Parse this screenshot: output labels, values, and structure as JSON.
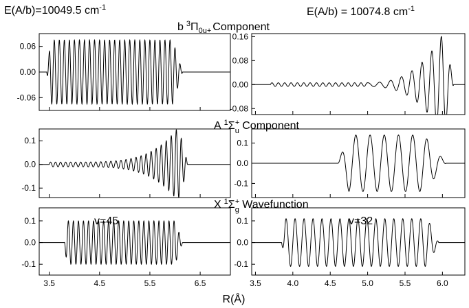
{
  "header": {
    "left_energy": "E(A/b)=10049.5 cm",
    "right_energy": "E(A/b) = 10074.8 cm",
    "energy_exp": "-1"
  },
  "rows": [
    {
      "state": "b",
      "sup": "3",
      "sym": "Π",
      "sub": "0u+",
      "suffix": "Component"
    },
    {
      "state": "A",
      "sup": "1",
      "sym": "Σ",
      "sub": "u",
      "sub_sup": "+",
      "suffix": "Component"
    },
    {
      "state": "X",
      "sup": "1",
      "sym": "Σ",
      "sub": "g",
      "sub_sup": "+",
      "suffix": "Wavefunction"
    }
  ],
  "x_axis_label": "R(Å)",
  "chart_data": [
    {
      "id": "b-left",
      "type": "line",
      "xlim": [
        3.3,
        7.1
      ],
      "ylim": [
        -0.09,
        0.09
      ],
      "y_ticks": [
        0.06,
        0.0,
        -0.06
      ],
      "y_tick_labels": [
        "0.06",
        "0.00",
        "-0.06"
      ],
      "x_ticks": [
        3.5,
        4.5,
        5.5,
        6.5
      ],
      "grid": false
    },
    {
      "id": "b-right",
      "type": "line",
      "xlim": [
        3.45,
        6.3
      ],
      "ylim": [
        -0.1,
        0.17
      ],
      "y_ticks": [
        0.16,
        0.08,
        0.0,
        -0.08
      ],
      "y_tick_labels": [
        "0.16",
        "0.08",
        "0.00",
        "-0.08"
      ],
      "x_ticks": [
        3.5,
        4.0,
        4.5,
        5.0,
        5.5,
        6.0
      ],
      "grid": false
    },
    {
      "id": "A-left",
      "type": "line",
      "xlim": [
        3.3,
        7.1
      ],
      "ylim": [
        -0.14,
        0.15
      ],
      "y_ticks": [
        0.1,
        0.0,
        -0.1
      ],
      "y_tick_labels": [
        "0.1",
        "0.0",
        "-0.1"
      ],
      "x_ticks": [
        3.5,
        4.5,
        5.5,
        6.5
      ],
      "grid": false
    },
    {
      "id": "A-right",
      "type": "line",
      "xlim": [
        3.45,
        6.3
      ],
      "ylim": [
        -0.17,
        0.17
      ],
      "y_ticks": [
        0.1,
        0.0,
        -0.1
      ],
      "y_tick_labels": [
        "0.1",
        "0.0",
        "-0.1"
      ],
      "x_ticks": [
        3.5,
        4.0,
        4.5,
        5.0,
        5.5,
        6.0
      ],
      "grid": false
    },
    {
      "id": "X-left",
      "type": "line",
      "xlim": [
        3.3,
        7.1
      ],
      "ylim": [
        -0.15,
        0.16
      ],
      "y_ticks": [
        0.1,
        0.0,
        -0.1
      ],
      "y_tick_labels": [
        "0.1",
        "0.0",
        "-0.1"
      ],
      "x_ticks": [
        3.5,
        4.5,
        5.5,
        6.5
      ],
      "x_tick_labels": [
        "3.5",
        "4.5",
        "5.5",
        "6.5"
      ],
      "annotation": "v=45",
      "grid": false
    },
    {
      "id": "X-right",
      "type": "line",
      "xlim": [
        3.45,
        6.3
      ],
      "ylim": [
        -0.15,
        0.16
      ],
      "y_ticks": [
        0.1,
        0.0,
        -0.1
      ],
      "y_tick_labels": [
        "0.1",
        "0.0",
        "-0.1"
      ],
      "x_ticks": [
        3.5,
        4.0,
        4.5,
        5.0,
        5.5,
        6.0
      ],
      "x_tick_labels": [
        "3.5",
        "4.0",
        "4.5",
        "5.0",
        "5.5",
        "6.0"
      ],
      "annotation": "v=32",
      "grid": false
    }
  ]
}
